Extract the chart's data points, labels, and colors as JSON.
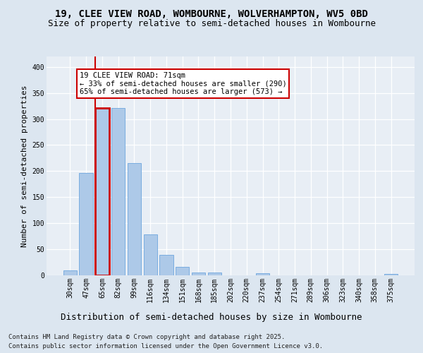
{
  "title": "19, CLEE VIEW ROAD, WOMBOURNE, WOLVERHAMPTON, WV5 0BD",
  "subtitle": "Size of property relative to semi-detached houses in Wombourne",
  "xlabel": "Distribution of semi-detached houses by size in Wombourne",
  "ylabel": "Number of semi-detached properties",
  "categories": [
    "30sqm",
    "47sqm",
    "65sqm",
    "82sqm",
    "99sqm",
    "116sqm",
    "134sqm",
    "151sqm",
    "168sqm",
    "185sqm",
    "202sqm",
    "220sqm",
    "237sqm",
    "254sqm",
    "271sqm",
    "289sqm",
    "306sqm",
    "323sqm",
    "340sqm",
    "358sqm",
    "375sqm"
  ],
  "values": [
    9,
    197,
    321,
    321,
    215,
    79,
    39,
    16,
    5,
    6,
    0,
    0,
    4,
    0,
    0,
    0,
    0,
    0,
    0,
    0,
    3
  ],
  "bar_color": "#adc9e8",
  "bar_edge_color": "#7aade0",
  "highlight_index": 2,
  "highlight_color": "#cc0000",
  "annotation_title": "19 CLEE VIEW ROAD: 71sqm",
  "annotation_line1": "← 33% of semi-detached houses are smaller (290)",
  "annotation_line2": "65% of semi-detached houses are larger (573) →",
  "annotation_box_facecolor": "#ffffff",
  "annotation_box_edgecolor": "#cc0000",
  "ylim": [
    0,
    420
  ],
  "yticks": [
    0,
    50,
    100,
    150,
    200,
    250,
    300,
    350,
    400
  ],
  "background_color": "#dce6f0",
  "plot_bg_color": "#e8eef5",
  "grid_color": "#ffffff",
  "footer_line1": "Contains HM Land Registry data © Crown copyright and database right 2025.",
  "footer_line2": "Contains public sector information licensed under the Open Government Licence v3.0.",
  "title_fontsize": 10,
  "subtitle_fontsize": 9,
  "xlabel_fontsize": 9,
  "ylabel_fontsize": 8,
  "tick_fontsize": 7,
  "annotation_fontsize": 7.5,
  "footer_fontsize": 6.5
}
